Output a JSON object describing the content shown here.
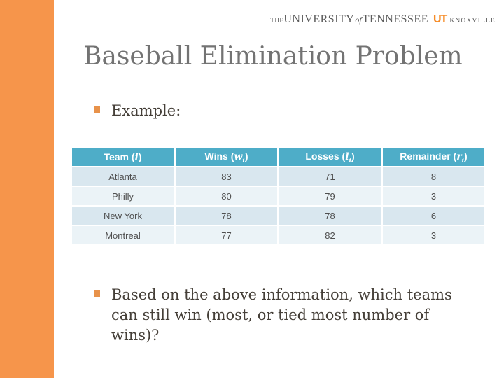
{
  "logo": {
    "the": "THE",
    "university": "UNIVERSITY",
    "of": "of",
    "tennessee": "TENNESSEE",
    "ut_mark": "UT",
    "knoxville": "KNOXVILLE"
  },
  "title": "Baseball Elimination Problem",
  "example_label": "Example:",
  "table": {
    "headers": [
      {
        "pre": "Team (",
        "sym": "i",
        "sub": "",
        "post": ")"
      },
      {
        "pre": "Wins (",
        "sym": "w",
        "sub": "i",
        "post": ")"
      },
      {
        "pre": "Losses (",
        "sym": "l",
        "sub": "i",
        "post": ")"
      },
      {
        "pre": "Remainder (",
        "sym": "r",
        "sub": "i",
        "post": ")"
      }
    ],
    "rows": [
      [
        "Atlanta",
        "83",
        "71",
        "8"
      ],
      [
        "Philly",
        "80",
        "79",
        "3"
      ],
      [
        "New York",
        "78",
        "78",
        "6"
      ],
      [
        "Montreal",
        "77",
        "82",
        "3"
      ]
    ]
  },
  "question": {
    "lines": [
      "Based on the above information, which teams",
      "can still win (most, or tied most number of",
      "wins)?"
    ]
  },
  "colors": {
    "sidebar_orange": "#F6954B",
    "logo_orange": "#F68C28",
    "header_teal": "#4EADC8",
    "band_dark": "#D9E7EF",
    "band_light": "#EBF3F7",
    "bullet_orange": "#E8924A",
    "title_gray": "#737373"
  }
}
